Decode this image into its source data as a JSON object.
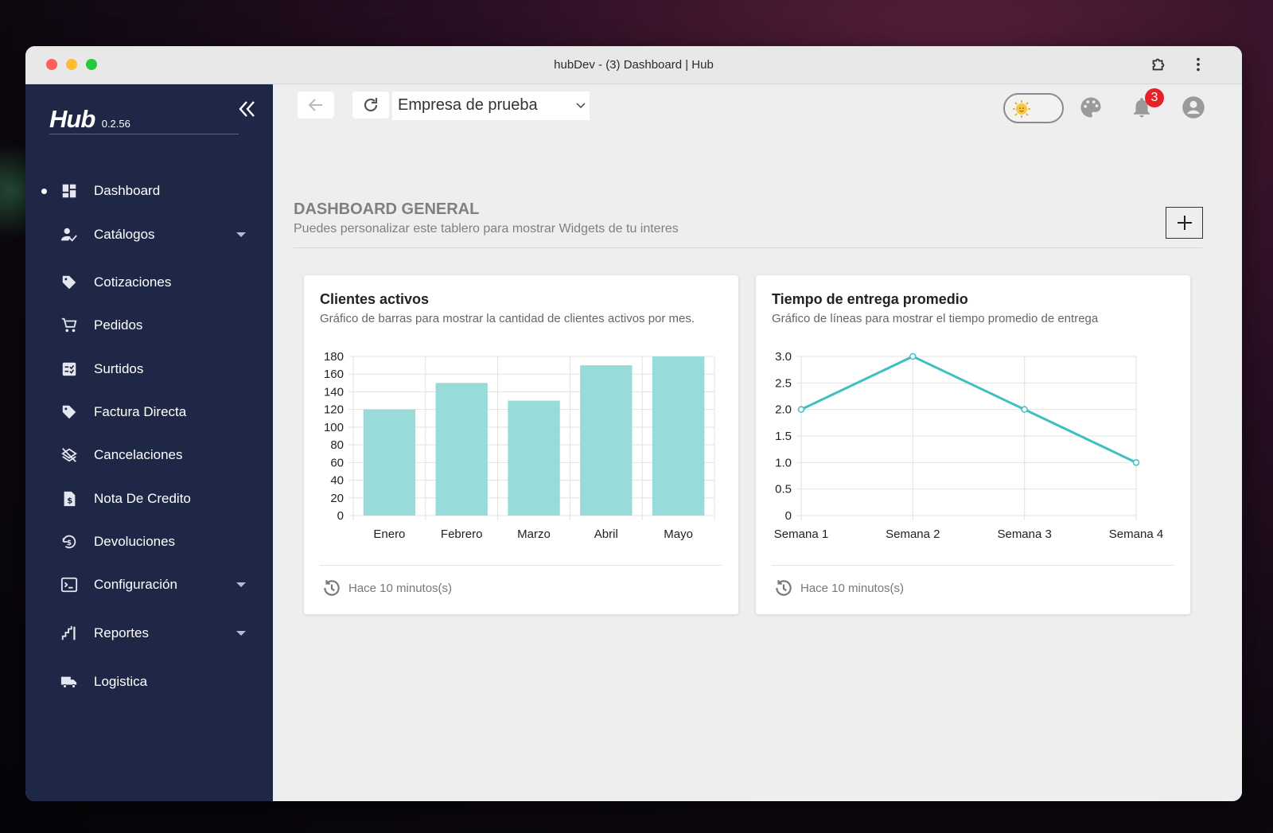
{
  "window": {
    "title": "hubDev - (3) Dashboard | Hub"
  },
  "sidebar": {
    "brand": "Hub",
    "version": "0.2.56",
    "items": [
      {
        "label": "Dashboard",
        "icon": "dashboard-icon",
        "active": true,
        "has_submenu": false
      },
      {
        "label": "Catálogos",
        "icon": "person-check-icon",
        "active": false,
        "has_submenu": true
      },
      {
        "label": "Cotizaciones",
        "icon": "tag-icon",
        "active": false,
        "has_submenu": false
      },
      {
        "label": "Pedidos",
        "icon": "cart-icon",
        "active": false,
        "has_submenu": false
      },
      {
        "label": "Surtidos",
        "icon": "checklist-icon",
        "active": false,
        "has_submenu": false
      },
      {
        "label": "Factura Directa",
        "icon": "tag-icon",
        "active": false,
        "has_submenu": false
      },
      {
        "label": "Cancelaciones",
        "icon": "layers-off-icon",
        "active": false,
        "has_submenu": false
      },
      {
        "label": "Nota De Credito",
        "icon": "invoice-icon",
        "active": false,
        "has_submenu": false
      },
      {
        "label": "Devoluciones",
        "icon": "money-return-icon",
        "active": false,
        "has_submenu": false
      },
      {
        "label": "Configuración",
        "icon": "terminal-icon",
        "active": false,
        "has_submenu": true
      },
      {
        "label": "Reportes",
        "icon": "stairs-icon",
        "active": false,
        "has_submenu": true
      },
      {
        "label": "Logistica",
        "icon": "truck-icon",
        "active": false,
        "has_submenu": false
      }
    ]
  },
  "header": {
    "company": "Empresa de prueba",
    "notifications_count": "3"
  },
  "section": {
    "title": "DASHBOARD GENERAL",
    "subtitle": "Puedes personalizar este tablero para mostrar Widgets de tu interes"
  },
  "cards": [
    {
      "title": "Clientes activos",
      "subtitle": "Gráfico de barras para mostrar la cantidad de clientes activos por mes.",
      "footer": "Hace 10 minutos(s)"
    },
    {
      "title": "Tiempo de entrega promedio",
      "subtitle": "Gráfico de líneas para mostrar el tiempo promedio de entrega",
      "footer": "Hace 10 minutos(s)"
    }
  ],
  "chart_data": [
    {
      "type": "bar",
      "categories": [
        "Enero",
        "Febrero",
        "Marzo",
        "Abril",
        "Mayo"
      ],
      "values": [
        120,
        150,
        130,
        170,
        180
      ],
      "ylim": [
        0,
        180
      ],
      "yticks": [
        0,
        20,
        40,
        60,
        80,
        100,
        120,
        140,
        160,
        180
      ],
      "color": "#98dbd8",
      "grid": true
    },
    {
      "type": "line",
      "categories": [
        "Semana 1",
        "Semana 2",
        "Semana 3",
        "Semana 4"
      ],
      "values": [
        2.0,
        3.0,
        2.0,
        1.0
      ],
      "ylim": [
        0,
        3.0
      ],
      "yticks": [
        "0",
        "0.5",
        "1.0",
        "1.5",
        "2.0",
        "2.5",
        "3.0"
      ],
      "color": "#3fbfbf",
      "grid": true
    }
  ]
}
